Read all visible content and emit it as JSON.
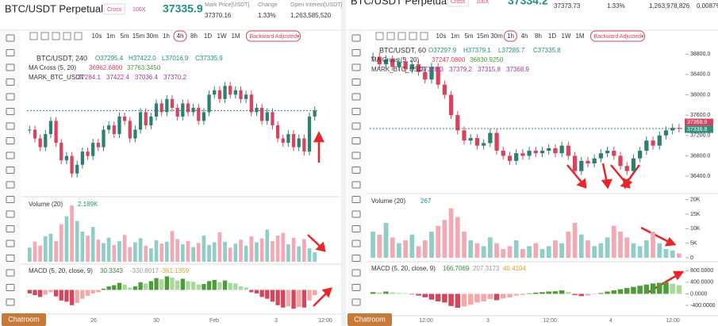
{
  "left": {
    "title": "BTC/USDT Perpetual",
    "margin": "Cross",
    "leverage": "100X",
    "last_price": "37335.9",
    "stats": [
      {
        "label": "Mark Price[USDT]",
        "value": "37370.16"
      },
      {
        "label": "Change",
        "value": "1.33%"
      },
      {
        "label": "Open Interest[USDT]",
        "value": "1,263,585,520"
      }
    ],
    "intervals": [
      "10s",
      "1m",
      "5m",
      "15m",
      "30m",
      "1h",
      "4h",
      "8h",
      "1D",
      "1W",
      "1M"
    ],
    "active_interval": 6,
    "adjust": "Backward Adjusted▾",
    "legend": {
      "symbol": "BTC/USDT, 240",
      "ohlc": [
        "O37295.4",
        "H37422.0",
        "L37016.9",
        "C37335.9"
      ],
      "ma": "MA Cross (5, 20)",
      "ma_values": [
        "36962.6800",
        "37763.3450"
      ],
      "mark": "MARK_BTC_USDT",
      "mark_values": [
        "37284.1",
        "37422.4",
        "37036.4",
        "37370.2"
      ]
    },
    "closes": [
      36900,
      36700,
      36500,
      36800,
      37100,
      36600,
      36200,
      36300,
      35900,
      36100,
      36400,
      36300,
      36600,
      36500,
      36900,
      37000,
      36800,
      37200,
      37100,
      36700,
      36900,
      37300,
      37000,
      37200,
      37500,
      37300,
      37600,
      37400,
      37200,
      37500,
      37300,
      37400,
      37100,
      37300,
      37700,
      37800,
      37600,
      37900,
      37700,
      37800,
      37600,
      37700,
      37300,
      37400,
      37100,
      37300,
      37000,
      36700,
      36600,
      36800,
      36500,
      36700,
      36400,
      37200,
      37336
    ],
    "volume": {
      "label": "Volume (20)",
      "last": "2.189K",
      "values": [
        2.1,
        3.0,
        2.4,
        3.8,
        4.2,
        3.1,
        5.6,
        6.8,
        8.4,
        6.1,
        4.5,
        3.9,
        5.2,
        3.3,
        2.8,
        3.6,
        2.5,
        3.1,
        4.0,
        2.2,
        2.9,
        3.5,
        2.4,
        2.0,
        3.2,
        2.7,
        3.0,
        4.6,
        3.4,
        2.6,
        3.1,
        2.2,
        2.8,
        3.9,
        2.5,
        2.9,
        4.4,
        3.0,
        2.1,
        2.7,
        3.3,
        2.4,
        3.8,
        2.9,
        3.5,
        4.8,
        3.1,
        3.9,
        4.3,
        2.6,
        3.6,
        2.3,
        3.4,
        2.0,
        1.4
      ]
    },
    "macd": {
      "label": "MACD (5, 20, close, 9)",
      "values_text": [
        "30.3343",
        "-330.8017",
        "-361.1359"
      ],
      "histogram": [
        -60,
        -90,
        -120,
        -80,
        -40,
        -110,
        -180,
        -200,
        -260,
        -220,
        -150,
        -100,
        -60,
        -40,
        20,
        60,
        80,
        120,
        90,
        40,
        60,
        130,
        110,
        150,
        200,
        180,
        230,
        210,
        160,
        190,
        150,
        140,
        90,
        100,
        150,
        170,
        130,
        160,
        120,
        110,
        60,
        40,
        -40,
        -60,
        -120,
        -150,
        -200,
        -260,
        -300,
        -280,
        -320,
        -290,
        -300,
        -180,
        -90
      ]
    },
    "x_labels": [
      "26",
      "30",
      "Feb",
      "3",
      "12:00"
    ],
    "chatroom": "Chatroom"
  },
  "right": {
    "title": "BTC/USDT Perpetual",
    "margin": "Cross",
    "leverage": "100X",
    "last_price": "37334.2",
    "stats": [
      "37373.73",
      "1.33%",
      "1,263,978,826",
      "0.0087%"
    ],
    "intervals": [
      "10s",
      "1m",
      "5m",
      "15m",
      "30m",
      "1h",
      "4h",
      "8h",
      "1D",
      "1W",
      "1M"
    ],
    "active_interval": 5,
    "adjust": "Backward Adjusted▾",
    "legend": {
      "symbol": "BTC/USDT, 60",
      "ohlc": [
        "O37297.9",
        "H37379.1",
        "L37285.7",
        "C37335.8"
      ],
      "ma": "MA Cross (5, 20)",
      "ma_values": [
        "37247.0800",
        "36830.9250"
      ],
      "mark": "MARK_BTC_USDT",
      "mark_values": [
        "37328.3",
        "37379.2",
        "37315.8",
        "37368.9"
      ]
    },
    "ylim": [
      36120,
      38960
    ],
    "yticks": [
      {
        "value": 38800,
        "label": "38800.0"
      },
      {
        "value": 38400,
        "label": "38400.0"
      },
      {
        "value": 38000,
        "label": "38000.0"
      },
      {
        "value": 37600,
        "label": "37600.0"
      },
      {
        "value": 37200,
        "label": "37200.0"
      },
      {
        "value": 36800,
        "label": "36800.0"
      },
      {
        "value": 36400,
        "label": "36400.0"
      }
    ],
    "price_labels": [
      "37368.9",
      "37336.8"
    ],
    "closes": [
      38750,
      38600,
      38700,
      38550,
      38650,
      38500,
      38600,
      38450,
      38300,
      38550,
      38200,
      38000,
      37600,
      37300,
      37100,
      37150,
      37000,
      37050,
      37250,
      36900,
      36800,
      36700,
      36850,
      36800,
      36900,
      36850,
      36900,
      36950,
      36850,
      37000,
      36800,
      36500,
      36700,
      36650,
      36750,
      36850,
      36900,
      36800,
      36600,
      36500,
      36750,
      36900,
      37100,
      37000,
      37200,
      37300,
      37350,
      37336
    ],
    "volume": {
      "label": "Volume (20)",
      "last": "267",
      "ylim": [
        0,
        21000
      ],
      "yticks": [
        {
          "value": 20000,
          "label": "20K"
        },
        {
          "value": 15000,
          "label": "15K"
        },
        {
          "value": 10000,
          "label": "10K"
        },
        {
          "value": 5000,
          "label": "5K"
        },
        0
      ],
      "values": [
        9000,
        8000,
        12000,
        7000,
        5000,
        6000,
        8000,
        4000,
        6000,
        9000,
        11000,
        13000,
        17000,
        14000,
        9000,
        6000,
        5000,
        4000,
        7000,
        5000,
        3000,
        4000,
        6000,
        3000,
        4000,
        5000,
        3000,
        4000,
        6000,
        5000,
        9000,
        12000,
        8000,
        6000,
        4000,
        5000,
        7000,
        11000,
        9000,
        7000,
        5000,
        4000,
        6000,
        9000,
        5000,
        3000,
        2500,
        1500
      ]
    },
    "macd": {
      "label": "MACD (5, 20, close, 9)",
      "values_text": [
        "166.7069",
        "207.3173",
        "40.4104"
      ],
      "ylim": [
        -700,
        1000
      ],
      "yticks": [
        {
          "value": 800,
          "label": "800.0000"
        },
        {
          "value": 400,
          "label": "400.0000"
        },
        {
          "value": 0,
          "label": "0.0000"
        },
        {
          "value": -400,
          "label": "-400.0000"
        }
      ],
      "histogram": [
        60,
        40,
        80,
        50,
        30,
        20,
        -20,
        -60,
        -120,
        -200,
        -260,
        -300,
        -420,
        -480,
        -440,
        -380,
        -300,
        -260,
        -180,
        -220,
        -160,
        -120,
        -60,
        -40,
        20,
        40,
        60,
        80,
        90,
        120,
        60,
        -40,
        -80,
        -60,
        -20,
        30,
        80,
        120,
        160,
        200,
        240,
        280,
        320,
        360,
        380,
        400,
        350,
        300
      ]
    },
    "x_labels": [
      "12:00",
      "3",
      "12:00",
      "4",
      "12:00"
    ],
    "chatroom": "Chatroom"
  }
}
